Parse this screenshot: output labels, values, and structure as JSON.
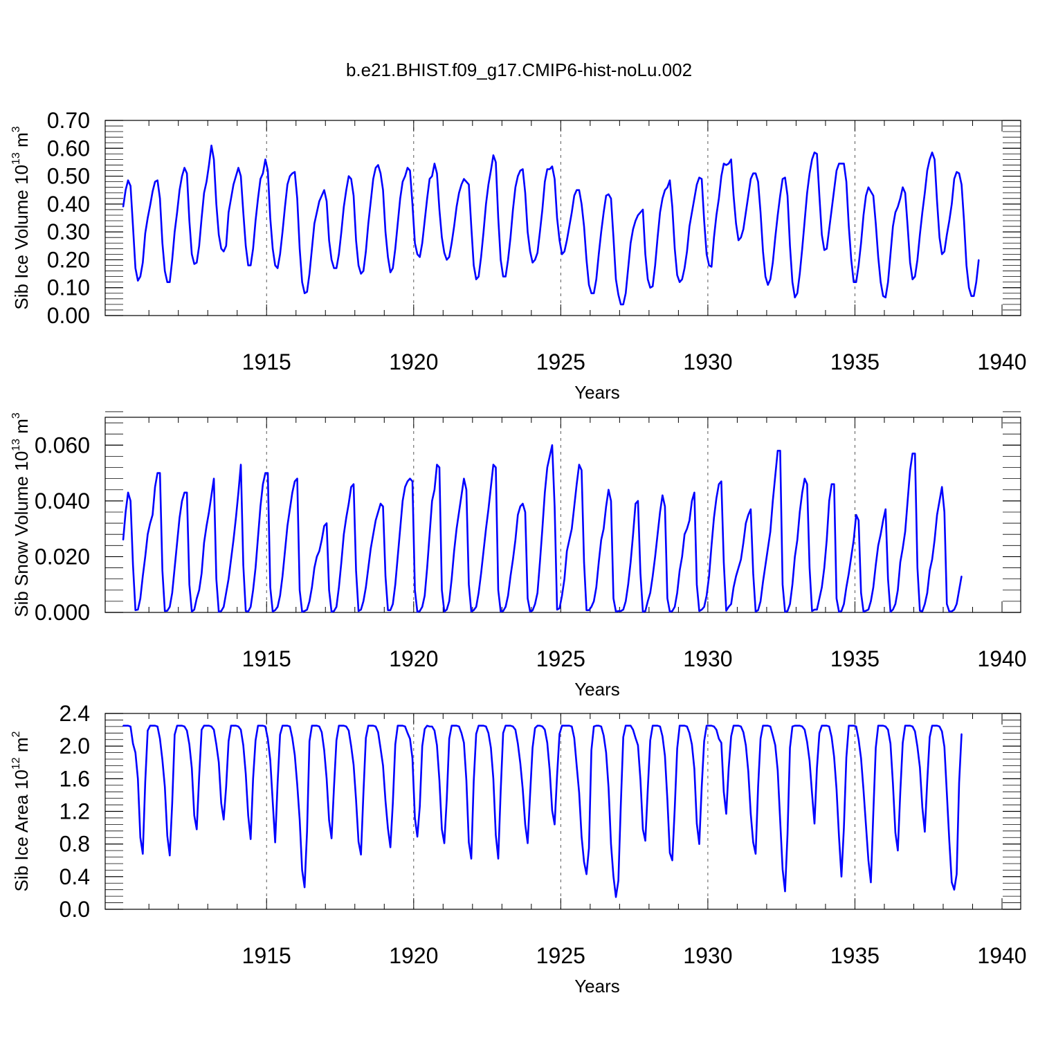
{
  "figure": {
    "title": "b.e21.BHIST.f09_g17.CMIP6-hist-noLu.002",
    "line_color": "#0000ff"
  },
  "chart_data": [
    {
      "type": "line",
      "name": "ice-volume",
      "ylabel_main": "Sib Ice Volume 10",
      "ylabel_exp": "13",
      "ylabel_unit": " m",
      "ylabel_unit_exp": "3",
      "xlabel": "Years",
      "xlim": [
        1910.125,
        1940.0
      ],
      "ylim": [
        0.0,
        0.7
      ],
      "xticks": [
        1915,
        1920,
        1925,
        1930,
        1935,
        1940
      ],
      "xtick_labels": [
        "1915",
        "1920",
        "1925",
        "1930",
        "1935",
        "1940"
      ],
      "yticks": [
        0.0,
        0.1,
        0.2,
        0.3,
        0.4,
        0.5,
        0.6,
        0.7
      ],
      "ytick_labels": [
        "0.00",
        "0.10",
        "0.20",
        "0.30",
        "0.40",
        "0.50",
        "0.60",
        "0.70"
      ],
      "yminor_step": 0.02,
      "grid": "vertical dashed at major x ticks",
      "start_year": 1910.125,
      "step": 0.0833333,
      "values": [
        0.39,
        0.45,
        0.485,
        0.465,
        0.32,
        0.17,
        0.125,
        0.14,
        0.19,
        0.295,
        0.35,
        0.395,
        0.445,
        0.48,
        0.485,
        0.42,
        0.26,
        0.16,
        0.12,
        0.12,
        0.2,
        0.3,
        0.37,
        0.45,
        0.5,
        0.53,
        0.51,
        0.34,
        0.22,
        0.185,
        0.19,
        0.25,
        0.35,
        0.44,
        0.48,
        0.54,
        0.61,
        0.56,
        0.4,
        0.29,
        0.24,
        0.23,
        0.25,
        0.37,
        0.42,
        0.47,
        0.5,
        0.53,
        0.5,
        0.37,
        0.25,
        0.18,
        0.18,
        0.24,
        0.34,
        0.42,
        0.49,
        0.51,
        0.56,
        0.52,
        0.35,
        0.24,
        0.18,
        0.17,
        0.22,
        0.3,
        0.39,
        0.47,
        0.5,
        0.51,
        0.515,
        0.42,
        0.24,
        0.12,
        0.08,
        0.085,
        0.15,
        0.24,
        0.33,
        0.37,
        0.41,
        0.43,
        0.45,
        0.41,
        0.27,
        0.2,
        0.17,
        0.17,
        0.22,
        0.3,
        0.39,
        0.45,
        0.5,
        0.49,
        0.43,
        0.27,
        0.18,
        0.15,
        0.16,
        0.23,
        0.33,
        0.41,
        0.49,
        0.53,
        0.54,
        0.51,
        0.45,
        0.3,
        0.21,
        0.155,
        0.17,
        0.24,
        0.33,
        0.42,
        0.48,
        0.5,
        0.53,
        0.52,
        0.4,
        0.26,
        0.22,
        0.21,
        0.26,
        0.34,
        0.42,
        0.49,
        0.5,
        0.545,
        0.51,
        0.38,
        0.28,
        0.225,
        0.2,
        0.21,
        0.26,
        0.32,
        0.39,
        0.44,
        0.47,
        0.49,
        0.48,
        0.47,
        0.32,
        0.18,
        0.13,
        0.14,
        0.21,
        0.3,
        0.4,
        0.47,
        0.52,
        0.575,
        0.55,
        0.35,
        0.2,
        0.14,
        0.14,
        0.2,
        0.28,
        0.38,
        0.46,
        0.5,
        0.52,
        0.525,
        0.44,
        0.3,
        0.23,
        0.19,
        0.2,
        0.225,
        0.3,
        0.38,
        0.48,
        0.525,
        0.525,
        0.535,
        0.49,
        0.35,
        0.27,
        0.22,
        0.23,
        0.27,
        0.32,
        0.37,
        0.43,
        0.45,
        0.45,
        0.4,
        0.32,
        0.2,
        0.11,
        0.08,
        0.08,
        0.13,
        0.22,
        0.3,
        0.37,
        0.43,
        0.435,
        0.42,
        0.28,
        0.13,
        0.075,
        0.04,
        0.04,
        0.08,
        0.17,
        0.26,
        0.31,
        0.34,
        0.36,
        0.37,
        0.38,
        0.22,
        0.13,
        0.1,
        0.105,
        0.18,
        0.28,
        0.37,
        0.42,
        0.45,
        0.46,
        0.485,
        0.39,
        0.24,
        0.145,
        0.12,
        0.13,
        0.17,
        0.23,
        0.32,
        0.37,
        0.42,
        0.47,
        0.495,
        0.49,
        0.34,
        0.22,
        0.18,
        0.175,
        0.28,
        0.36,
        0.42,
        0.5,
        0.545,
        0.54,
        0.545,
        0.56,
        0.43,
        0.33,
        0.27,
        0.28,
        0.31,
        0.37,
        0.43,
        0.49,
        0.51,
        0.51,
        0.48,
        0.37,
        0.23,
        0.14,
        0.11,
        0.13,
        0.19,
        0.28,
        0.36,
        0.43,
        0.49,
        0.495,
        0.43,
        0.25,
        0.12,
        0.065,
        0.08,
        0.15,
        0.24,
        0.34,
        0.44,
        0.51,
        0.56,
        0.585,
        0.58,
        0.43,
        0.29,
        0.235,
        0.24,
        0.31,
        0.38,
        0.45,
        0.52,
        0.545,
        0.545,
        0.545,
        0.48,
        0.32,
        0.2,
        0.12,
        0.12,
        0.18,
        0.26,
        0.36,
        0.43,
        0.46,
        0.445,
        0.43,
        0.33,
        0.21,
        0.12,
        0.07,
        0.065,
        0.12,
        0.22,
        0.32,
        0.37,
        0.39,
        0.42,
        0.46,
        0.44,
        0.32,
        0.19,
        0.13,
        0.14,
        0.2,
        0.29,
        0.37,
        0.44,
        0.52,
        0.56,
        0.585,
        0.56,
        0.41,
        0.28,
        0.22,
        0.23,
        0.29,
        0.34,
        0.4,
        0.49,
        0.515,
        0.51,
        0.47,
        0.34,
        0.18,
        0.1,
        0.07,
        0.07,
        0.12,
        0.2
      ]
    },
    {
      "type": "line",
      "name": "snow-volume",
      "ylabel_main": "Sib Snow Volume 10",
      "ylabel_exp": "13",
      "ylabel_unit": " m",
      "ylabel_unit_exp": "3",
      "xlabel": "Years",
      "xlim": [
        1910.125,
        1940.0
      ],
      "ylim": [
        0.0,
        0.07
      ],
      "xticks": [
        1915,
        1920,
        1925,
        1930,
        1935,
        1940
      ],
      "xtick_labels": [
        "1915",
        "1920",
        "1925",
        "1930",
        "1935",
        "1940"
      ],
      "yticks": [
        0.0,
        0.02,
        0.04,
        0.06
      ],
      "ytick_labels": [
        "0.000",
        "0.020",
        "0.040",
        "0.060"
      ],
      "yminor_step": 0.004,
      "grid": "vertical dashed at major x ticks",
      "start_year": 1910.125,
      "step": 0.0833333,
      "values": [
        0.026,
        0.036,
        0.043,
        0.04,
        0.017,
        0.0008,
        0.001,
        0.005,
        0.013,
        0.02,
        0.028,
        0.032,
        0.035,
        0.045,
        0.05,
        0.05,
        0.015,
        0.0005,
        0.0006,
        0.002,
        0.007,
        0.016,
        0.025,
        0.034,
        0.04,
        0.043,
        0.043,
        0.01,
        0.0003,
        0.001,
        0.005,
        0.008,
        0.014,
        0.025,
        0.031,
        0.036,
        0.042,
        0.048,
        0.012,
        0.0002,
        0.0005,
        0.002,
        0.007,
        0.012,
        0.019,
        0.026,
        0.034,
        0.043,
        0.053,
        0.017,
        0.0005,
        0.0003,
        0.002,
        0.008,
        0.016,
        0.027,
        0.038,
        0.046,
        0.05,
        0.05,
        0.009,
        0.0003,
        0.0008,
        0.002,
        0.006,
        0.013,
        0.022,
        0.031,
        0.037,
        0.043,
        0.047,
        0.048,
        0.008,
        0.0002,
        0.0005,
        0.001,
        0.004,
        0.009,
        0.016,
        0.02,
        0.022,
        0.026,
        0.031,
        0.032,
        0.008,
        0.0002,
        0.0005,
        0.002,
        0.009,
        0.018,
        0.028,
        0.034,
        0.039,
        0.045,
        0.046,
        0.015,
        0.0005,
        0.001,
        0.004,
        0.009,
        0.016,
        0.023,
        0.028,
        0.033,
        0.036,
        0.039,
        0.038,
        0.013,
        0.0008,
        0.0008,
        0.003,
        0.01,
        0.02,
        0.03,
        0.04,
        0.045,
        0.047,
        0.048,
        0.047,
        0.008,
        0.0002,
        0.0005,
        0.002,
        0.006,
        0.016,
        0.028,
        0.04,
        0.044,
        0.053,
        0.052,
        0.008,
        0.0003,
        0.001,
        0.004,
        0.012,
        0.022,
        0.03,
        0.036,
        0.042,
        0.048,
        0.044,
        0.01,
        0.0003,
        0.0008,
        0.002,
        0.007,
        0.014,
        0.022,
        0.03,
        0.037,
        0.045,
        0.053,
        0.052,
        0.008,
        0.0003,
        0.0005,
        0.002,
        0.006,
        0.013,
        0.019,
        0.026,
        0.035,
        0.038,
        0.039,
        0.036,
        0.005,
        0.0003,
        0.0007,
        0.003,
        0.007,
        0.018,
        0.03,
        0.043,
        0.052,
        0.056,
        0.06,
        0.038,
        0.001,
        0.0015,
        0.006,
        0.012,
        0.022,
        0.026,
        0.03,
        0.038,
        0.046,
        0.053,
        0.051,
        0.018,
        0.0008,
        0.0008,
        0.002,
        0.004,
        0.009,
        0.018,
        0.026,
        0.03,
        0.038,
        0.044,
        0.04,
        0.005,
        0.0003,
        0.0005,
        0.0005,
        0.001,
        0.004,
        0.01,
        0.018,
        0.028,
        0.039,
        0.04,
        0.014,
        0.0002,
        0.0005,
        0.004,
        0.007,
        0.013,
        0.02,
        0.028,
        0.036,
        0.042,
        0.038,
        0.005,
        0.0002,
        0.0005,
        0.002,
        0.007,
        0.015,
        0.02,
        0.028,
        0.03,
        0.033,
        0.04,
        0.043,
        0.01,
        0.0005,
        0.001,
        0.002,
        0.006,
        0.013,
        0.024,
        0.034,
        0.041,
        0.046,
        0.047,
        0.018,
        0.0006,
        0.002,
        0.003,
        0.009,
        0.013,
        0.016,
        0.019,
        0.025,
        0.032,
        0.035,
        0.037,
        0.014,
        0.0003,
        0.0008,
        0.004,
        0.011,
        0.017,
        0.023,
        0.029,
        0.04,
        0.049,
        0.058,
        0.058,
        0.01,
        0.0002,
        0.0005,
        0.003,
        0.01,
        0.02,
        0.026,
        0.036,
        0.043,
        0.048,
        0.046,
        0.016,
        0.0005,
        0.001,
        0.001,
        0.005,
        0.009,
        0.016,
        0.026,
        0.04,
        0.046,
        0.046,
        0.005,
        0.0002,
        0.0005,
        0.003,
        0.009,
        0.014,
        0.02,
        0.026,
        0.035,
        0.033,
        0.007,
        0.0003,
        0.0006,
        0.001,
        0.004,
        0.009,
        0.017,
        0.024,
        0.028,
        0.033,
        0.037,
        0.012,
        0.0002,
        0.001,
        0.003,
        0.008,
        0.018,
        0.023,
        0.029,
        0.04,
        0.051,
        0.057,
        0.057,
        0.016,
        0.0006,
        0.0004,
        0.003,
        0.007,
        0.015,
        0.019,
        0.026,
        0.035,
        0.04,
        0.045,
        0.036,
        0.003,
        0.0003,
        0.0004,
        0.001,
        0.003,
        0.008,
        0.013
      ]
    },
    {
      "type": "line",
      "name": "ice-area",
      "ylabel_main": "Sib Ice Area 10",
      "ylabel_exp": "12",
      "ylabel_unit": " m",
      "ylabel_unit_exp": "2",
      "xlabel": "Years",
      "xlim": [
        1910.125,
        1940.0
      ],
      "ylim": [
        0.0,
        2.4
      ],
      "xticks": [
        1915,
        1920,
        1925,
        1930,
        1935,
        1940
      ],
      "xtick_labels": [
        "1915",
        "1920",
        "1925",
        "1930",
        "1935",
        "1940"
      ],
      "yticks": [
        0.0,
        0.4,
        0.8,
        1.2,
        1.6,
        2.0,
        2.4
      ],
      "ytick_labels": [
        "0.0",
        "0.4",
        "0.8",
        "1.2",
        "1.6",
        "2.0",
        "2.4"
      ],
      "yminor_step": 0.08,
      "grid": "vertical dashed at major x ticks",
      "start_year": 1910.125,
      "step": 0.0833333,
      "values": [
        2.25,
        2.25,
        2.25,
        2.24,
        2.03,
        1.92,
        1.6,
        0.88,
        0.68,
        1.56,
        2.19,
        2.25,
        2.25,
        2.25,
        2.24,
        2.09,
        1.83,
        1.5,
        0.9,
        0.66,
        1.3,
        2.14,
        2.25,
        2.25,
        2.25,
        2.24,
        2.19,
        2.02,
        1.73,
        1.15,
        0.98,
        1.63,
        2.2,
        2.25,
        2.25,
        2.25,
        2.24,
        2.2,
        2.02,
        1.8,
        1.3,
        1.1,
        1.5,
        2.06,
        2.25,
        2.25,
        2.25,
        2.24,
        2.2,
        2.01,
        1.66,
        1.15,
        0.86,
        1.6,
        2.07,
        2.25,
        2.25,
        2.25,
        2.24,
        2.09,
        1.83,
        1.32,
        0.82,
        1.55,
        2.14,
        2.25,
        2.25,
        2.25,
        2.24,
        2.1,
        1.89,
        1.53,
        1.1,
        0.48,
        0.27,
        0.95,
        2.06,
        2.25,
        2.25,
        2.25,
        2.24,
        2.17,
        1.95,
        1.6,
        1.09,
        0.87,
        1.5,
        2.07,
        2.25,
        2.25,
        2.25,
        2.24,
        2.19,
        2.0,
        1.77,
        1.34,
        0.83,
        0.67,
        1.42,
        2.1,
        2.25,
        2.25,
        2.25,
        2.24,
        2.17,
        1.97,
        1.76,
        1.33,
        0.99,
        0.76,
        1.3,
        2.02,
        2.25,
        2.25,
        2.25,
        2.24,
        2.16,
        2.09,
        1.85,
        1.12,
        0.89,
        1.26,
        2.0,
        2.21,
        2.25,
        2.24,
        2.24,
        2.19,
        2.01,
        1.58,
        0.98,
        0.81,
        1.35,
        2.09,
        2.25,
        2.25,
        2.25,
        2.24,
        2.16,
        2.04,
        1.58,
        0.82,
        0.62,
        1.57,
        2.15,
        2.25,
        2.25,
        2.25,
        2.24,
        2.16,
        1.98,
        1.6,
        0.91,
        0.62,
        1.45,
        2.16,
        2.25,
        2.25,
        2.25,
        2.24,
        2.2,
        2.03,
        1.79,
        1.47,
        1.04,
        0.81,
        1.41,
        1.98,
        2.22,
        2.25,
        2.25,
        2.24,
        2.2,
        2.04,
        1.7,
        1.21,
        1.04,
        1.64,
        2.15,
        2.25,
        2.25,
        2.25,
        2.25,
        2.24,
        2.1,
        1.76,
        1.43,
        0.89,
        0.58,
        0.43,
        0.75,
        1.95,
        2.24,
        2.25,
        2.25,
        2.24,
        2.13,
        1.92,
        1.49,
        0.8,
        0.4,
        0.15,
        0.35,
        1.28,
        2.11,
        2.25,
        2.25,
        2.25,
        2.2,
        2.1,
        2.01,
        1.59,
        0.98,
        0.84,
        1.47,
        2.07,
        2.25,
        2.25,
        2.25,
        2.24,
        2.12,
        1.88,
        1.34,
        0.69,
        0.6,
        1.24,
        1.97,
        2.25,
        2.25,
        2.25,
        2.24,
        2.16,
        2.02,
        1.72,
        1.05,
        0.8,
        1.5,
        2.06,
        2.25,
        2.25,
        2.25,
        2.24,
        2.2,
        2.09,
        2.04,
        1.44,
        1.17,
        1.73,
        2.12,
        2.25,
        2.25,
        2.25,
        2.24,
        2.17,
        2.01,
        1.69,
        1.17,
        0.82,
        0.68,
        1.5,
        2.09,
        2.25,
        2.25,
        2.25,
        2.24,
        2.13,
        2.01,
        1.7,
        1.09,
        0.49,
        0.22,
        0.92,
        1.98,
        2.24,
        2.25,
        2.25,
        2.25,
        2.24,
        2.2,
        2.05,
        1.82,
        1.42,
        1.05,
        1.73,
        2.16,
        2.25,
        2.25,
        2.25,
        2.24,
        2.11,
        1.87,
        1.47,
        0.89,
        0.4,
        1.0,
        1.86,
        2.25,
        2.25,
        2.25,
        2.24,
        2.08,
        1.85,
        1.46,
        1.03,
        0.6,
        0.33,
        1.18,
        1.98,
        2.25,
        2.25,
        2.25,
        2.24,
        2.2,
        2.03,
        1.54,
        0.94,
        0.72,
        1.43,
        2.04,
        2.25,
        2.25,
        2.25,
        2.24,
        2.18,
        1.99,
        1.74,
        1.25,
        0.95,
        1.57,
        2.11,
        2.25,
        2.25,
        2.25,
        2.24,
        2.18,
        1.99,
        1.42,
        0.84,
        0.33,
        0.24,
        0.43,
        1.55,
        2.15
      ]
    }
  ]
}
